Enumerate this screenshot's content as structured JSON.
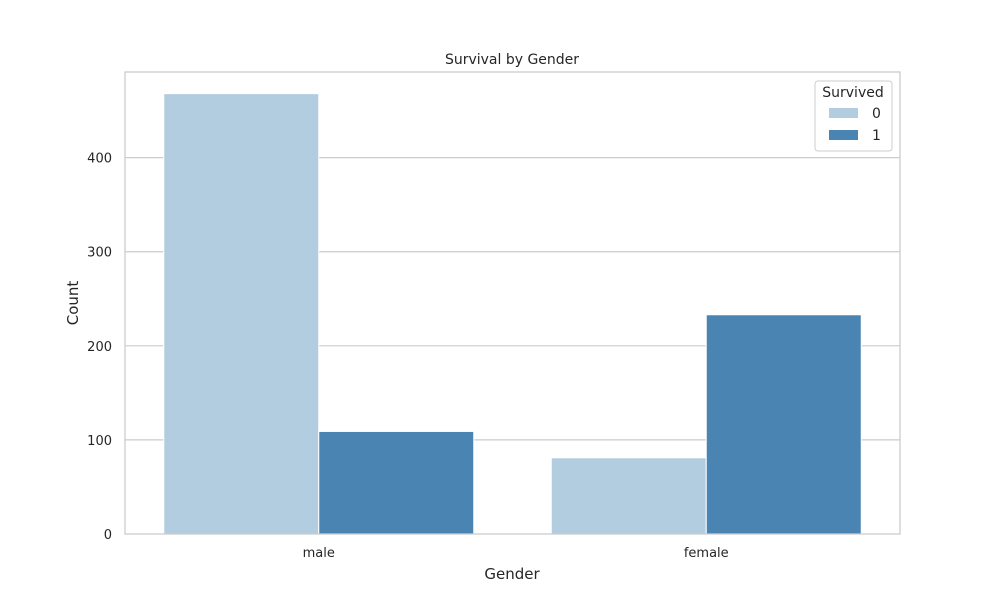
{
  "chart_data": {
    "type": "bar",
    "title": "Survival by Gender",
    "xlabel": "Gender",
    "ylabel": "Count",
    "categories": [
      "male",
      "female"
    ],
    "series": [
      {
        "name": "0",
        "values": [
          468,
          81
        ],
        "color": "#b3cde0"
      },
      {
        "name": "1",
        "values": [
          109,
          233
        ],
        "color": "#4a84b3"
      }
    ],
    "ylim": [
      0,
      491
    ],
    "yticks": [
      0,
      100,
      200,
      300,
      400
    ],
    "ytick_labels": [
      "0",
      "100",
      "200",
      "300",
      "400"
    ],
    "grid": true,
    "legend": {
      "title": "Survived",
      "placement": "top-right"
    }
  }
}
